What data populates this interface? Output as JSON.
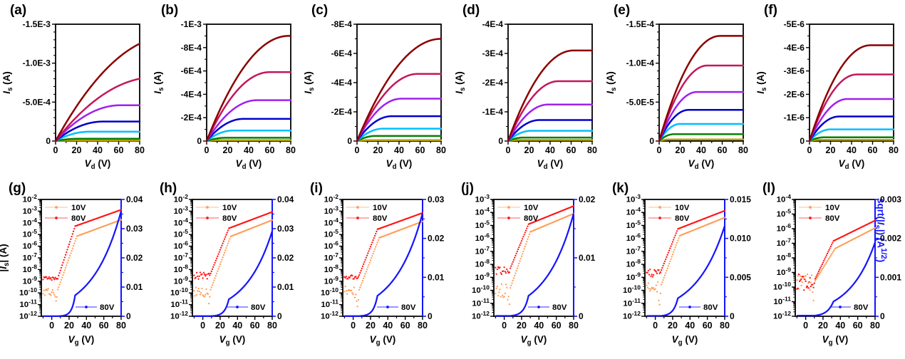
{
  "figure": {
    "background": "#ffffff",
    "right_axis_color": "#1414FF",
    "right_axis_label": "sqrt(|~I~_{s}|) (A^{1/2})"
  },
  "chart_data": [
    {
      "id": "a",
      "panel_label": "(a)",
      "type": "line",
      "kind": "output",
      "xlabel": "~V~_{d} (V)",
      "ylabel": "~I~_{s} (A)",
      "xlim": [
        0,
        80
      ],
      "x_major_ticks": [
        0,
        20,
        40,
        60,
        80
      ],
      "x_minor_ticks": [
        10,
        30,
        50,
        70
      ],
      "ylim": [
        0,
        -0.0015
      ],
      "y_minor_step": 0.0001,
      "y_tick_values": [
        0,
        -0.0005,
        -0.001,
        -0.0015
      ],
      "y_tick_labels": [
        "0",
        "-5.0E-4",
        "-1.0E-3",
        "-1.5E-3"
      ],
      "series": [
        {
          "name": "dark-red",
          "color": "#8B0000",
          "i_at_80V": -0.00125,
          "v_knee": 110
        },
        {
          "name": "crimson",
          "color": "#C2185B",
          "i_at_80V": -0.0008,
          "v_knee": 95
        },
        {
          "name": "violet",
          "color": "#A020F0",
          "i_at_80V": -0.00046,
          "v_knee": 62
        },
        {
          "name": "navy-blue",
          "color": "#0000CD",
          "i_at_80V": -0.00025,
          "v_knee": 45
        },
        {
          "name": "cyan",
          "color": "#00BFFF",
          "i_at_80V": -0.00012,
          "v_knee": 32
        },
        {
          "name": "green",
          "color": "#068006",
          "i_at_80V": -3e-05,
          "v_knee": 22
        },
        {
          "name": "dark-yellow",
          "color": "#B8A400",
          "i_at_80V": -8e-06,
          "v_knee": 15
        }
      ]
    },
    {
      "id": "b",
      "panel_label": "(b)",
      "type": "line",
      "kind": "output",
      "xlabel": "~V~_{d} (V)",
      "ylabel": "~I~_{s} (A)",
      "xlim": [
        0,
        80
      ],
      "x_major_ticks": [
        0,
        20,
        40,
        60,
        80
      ],
      "x_minor_ticks": [
        10,
        30,
        50,
        70
      ],
      "ylim": [
        0,
        -0.001
      ],
      "y_minor_step": 0.0001,
      "y_tick_values": [
        0,
        -0.0002,
        -0.0004,
        -0.0006,
        -0.0008,
        -0.001
      ],
      "y_tick_labels": [
        "0",
        "-2E-4",
        "-4E-4",
        "-6E-4",
        "-8E-4",
        "-1E-3"
      ],
      "series": [
        {
          "name": "dark-red",
          "color": "#8B0000",
          "i_at_80V": -0.0009,
          "v_knee": 78
        },
        {
          "name": "crimson",
          "color": "#C2185B",
          "i_at_80V": -0.00059,
          "v_knee": 60
        },
        {
          "name": "violet",
          "color": "#A020F0",
          "i_at_80V": -0.00035,
          "v_knee": 48
        },
        {
          "name": "navy-blue",
          "color": "#0000CD",
          "i_at_80V": -0.00019,
          "v_knee": 35
        },
        {
          "name": "cyan",
          "color": "#00BFFF",
          "i_at_80V": -9e-05,
          "v_knee": 25
        },
        {
          "name": "green",
          "color": "#068006",
          "i_at_80V": -2.8e-05,
          "v_knee": 18
        },
        {
          "name": "dark-yellow",
          "color": "#B8A400",
          "i_at_80V": -8e-06,
          "v_knee": 12
        }
      ]
    },
    {
      "id": "c",
      "panel_label": "(c)",
      "type": "line",
      "kind": "output",
      "xlabel": "~V~_{d} (V)",
      "ylabel": "~I~_{s} (A)",
      "xlim": [
        0,
        80
      ],
      "x_major_ticks": [
        0,
        20,
        40,
        60,
        80
      ],
      "x_minor_ticks": [
        10,
        30,
        50,
        70
      ],
      "ylim": [
        0,
        -0.0008
      ],
      "y_minor_step": 0.0001,
      "y_tick_values": [
        0,
        -0.0002,
        -0.0004,
        -0.0006,
        -0.0008
      ],
      "y_tick_labels": [
        "0",
        "-2E-4",
        "-4E-4",
        "-6E-4",
        "-8E-4"
      ],
      "series": [
        {
          "name": "dark-red",
          "color": "#8B0000",
          "i_at_80V": -0.0007,
          "v_knee": 80
        },
        {
          "name": "crimson",
          "color": "#C2185B",
          "i_at_80V": -0.00046,
          "v_knee": 58
        },
        {
          "name": "violet",
          "color": "#A020F0",
          "i_at_80V": -0.00029,
          "v_knee": 42
        },
        {
          "name": "navy-blue",
          "color": "#0000CD",
          "i_at_80V": -0.00017,
          "v_knee": 33
        },
        {
          "name": "cyan",
          "color": "#00BFFF",
          "i_at_80V": -8.5e-05,
          "v_knee": 25
        },
        {
          "name": "green",
          "color": "#068006",
          "i_at_80V": -3.5e-05,
          "v_knee": 18
        },
        {
          "name": "dark-yellow",
          "color": "#B8A400",
          "i_at_80V": -6e-06,
          "v_knee": 12
        }
      ]
    },
    {
      "id": "d",
      "panel_label": "(d)",
      "type": "line",
      "kind": "output",
      "xlabel": "~V~_{d} (V)",
      "ylabel": "~I~_{s} (A)",
      "xlim": [
        0,
        80
      ],
      "x_major_ticks": [
        0,
        20,
        40,
        60,
        80
      ],
      "x_minor_ticks": [
        10,
        30,
        50,
        70
      ],
      "ylim": [
        0,
        -0.0004
      ],
      "y_minor_step": 5e-05,
      "y_tick_values": [
        0,
        -0.0001,
        -0.0002,
        -0.0003,
        -0.0004
      ],
      "y_tick_labels": [
        "0",
        "-1E-4",
        "-2E-4",
        "-3E-4",
        "-4E-4"
      ],
      "series": [
        {
          "name": "dark-red",
          "color": "#8B0000",
          "i_at_80V": -0.00031,
          "v_knee": 62
        },
        {
          "name": "crimson",
          "color": "#C2185B",
          "i_at_80V": -0.000205,
          "v_knee": 48
        },
        {
          "name": "violet",
          "color": "#A020F0",
          "i_at_80V": -0.000125,
          "v_knee": 38
        },
        {
          "name": "navy-blue",
          "color": "#0000CD",
          "i_at_80V": -7.2e-05,
          "v_knee": 30
        },
        {
          "name": "cyan",
          "color": "#00BFFF",
          "i_at_80V": -3.5e-05,
          "v_knee": 22
        },
        {
          "name": "green",
          "color": "#068006",
          "i_at_80V": -1.2e-05,
          "v_knee": 15
        },
        {
          "name": "dark-yellow",
          "color": "#B8A400",
          "i_at_80V": -3.5e-06,
          "v_knee": 10
        }
      ]
    },
    {
      "id": "e",
      "panel_label": "(e)",
      "type": "line",
      "kind": "output",
      "xlabel": "~V~_{d} (V)",
      "ylabel": "~I~_{s} (A)",
      "xlim": [
        0,
        80
      ],
      "x_major_ticks": [
        0,
        20,
        40,
        60,
        80
      ],
      "x_minor_ticks": [
        10,
        30,
        50,
        70
      ],
      "ylim": [
        0,
        -0.00015
      ],
      "y_minor_step": 1e-05,
      "y_tick_values": [
        0,
        -5e-05,
        -0.0001,
        -0.00015
      ],
      "y_tick_labels": [
        "0",
        "-5.0E-5",
        "-1.0E-4",
        "-1.5E-4"
      ],
      "series": [
        {
          "name": "dark-red",
          "color": "#8B0000",
          "i_at_80V": -0.000135,
          "v_knee": 58
        },
        {
          "name": "crimson",
          "color": "#C2185B",
          "i_at_80V": -9.7e-05,
          "v_knee": 46
        },
        {
          "name": "violet",
          "color": "#A020F0",
          "i_at_80V": -6.3e-05,
          "v_knee": 36
        },
        {
          "name": "navy-blue",
          "color": "#0000CD",
          "i_at_80V": -4e-05,
          "v_knee": 28
        },
        {
          "name": "cyan",
          "color": "#00BFFF",
          "i_at_80V": -2.2e-05,
          "v_knee": 20
        },
        {
          "name": "green",
          "color": "#068006",
          "i_at_80V": -8.8e-06,
          "v_knee": 14
        },
        {
          "name": "dark-yellow",
          "color": "#B8A400",
          "i_at_80V": -2e-06,
          "v_knee": 10
        }
      ]
    },
    {
      "id": "f",
      "panel_label": "(f)",
      "type": "line",
      "kind": "output",
      "xlabel": "~V~_{d} (V)",
      "ylabel": "~I~_{s} (A)",
      "xlim": [
        0,
        80
      ],
      "x_major_ticks": [
        0,
        20,
        40,
        60,
        80
      ],
      "x_minor_ticks": [
        10,
        30,
        50,
        70
      ],
      "ylim": [
        0,
        -5e-06
      ],
      "y_minor_step": 5e-07,
      "y_tick_values": [
        0,
        -1e-06,
        -2e-06,
        -3e-06,
        -4e-06,
        -5e-06
      ],
      "y_tick_labels": [
        "0",
        "-1E-6",
        "-2E-6",
        "-3E-6",
        "-4E-6",
        "-5E-6"
      ],
      "series": [
        {
          "name": "dark-red",
          "color": "#8B0000",
          "i_at_80V": -4.1e-06,
          "v_knee": 58
        },
        {
          "name": "crimson",
          "color": "#C2185B",
          "i_at_80V": -2.85e-06,
          "v_knee": 45
        },
        {
          "name": "violet",
          "color": "#A020F0",
          "i_at_80V": -1.8e-06,
          "v_knee": 36
        },
        {
          "name": "navy-blue",
          "color": "#0000CD",
          "i_at_80V": -1.05e-06,
          "v_knee": 28
        },
        {
          "name": "cyan",
          "color": "#00BFFF",
          "i_at_80V": -5e-07,
          "v_knee": 20
        },
        {
          "name": "green",
          "color": "#068006",
          "i_at_80V": -1.6e-07,
          "v_knee": 14
        },
        {
          "name": "dark-yellow",
          "color": "#B8A400",
          "i_at_80V": -5e-08,
          "v_knee": 10
        }
      ]
    },
    {
      "id": "g",
      "panel_label": "(g)",
      "type": "scatter",
      "kind": "transfer",
      "xlabel": "~V~_{g} (V)",
      "ylabel_left": "|~I~_{s}| (A)",
      "xlim": [
        -12,
        80
      ],
      "x_major_ticks": [
        0,
        20,
        40,
        60,
        80
      ],
      "x_minor_ticks": [
        -10,
        10,
        30,
        50,
        70
      ],
      "left_log_range": [
        -12,
        -2
      ],
      "right_axis": {
        "max": 0.04,
        "major_ticks": [
          0,
          0.01,
          0.02,
          0.03,
          0.04
        ],
        "labels": [
          "0",
          "0.01",
          "0.02",
          "0.03",
          "0.04"
        ]
      },
      "legend_top": [
        {
          "label": "10V",
          "color": "#FF9E57"
        },
        {
          "label": "80V",
          "color": "#FF1414"
        }
      ],
      "legend_bottom": {
        "label": "80V",
        "color": "#1414FF"
      },
      "series": {
        "vd10": {
          "name": "10V",
          "color": "#FF9E57",
          "i_off": 1.2e-10,
          "v_on": 6,
          "v_knee": 29,
          "i_on_80V": 0.00018,
          "noise": 0.35,
          "pre_on_dip": true
        },
        "vd80": {
          "name": "80V",
          "color": "#FF1414",
          "i_off": 1.8e-09,
          "v_on": 7,
          "v_knee": 27,
          "i_on_80V": 0.0013,
          "noise": 0.12,
          "pre_on_dip": false
        },
        "sqrt80": {
          "name": "80V",
          "color": "#1414FF",
          "sqrt_at_80V": 0.036
        }
      }
    },
    {
      "id": "h",
      "panel_label": "(h)",
      "type": "scatter",
      "kind": "transfer",
      "xlabel": "~V~_{g} (V)",
      "xlim": [
        -12,
        80
      ],
      "x_major_ticks": [
        0,
        20,
        40,
        60,
        80
      ],
      "x_minor_ticks": [
        -10,
        10,
        30,
        50,
        70
      ],
      "left_log_range": [
        -12,
        -2
      ],
      "right_axis": {
        "max": 0.04,
        "major_ticks": [
          0,
          0.01,
          0.02,
          0.03,
          0.04
        ],
        "labels": [
          "0",
          "0.01",
          "0.02",
          "0.03",
          "0.04"
        ]
      },
      "legend_top": [
        {
          "label": "10V",
          "color": "#FF9E57"
        },
        {
          "label": "80V",
          "color": "#FF1414"
        }
      ],
      "legend_bottom": {
        "label": "80V",
        "color": "#1414FF"
      },
      "series": {
        "vd10": {
          "name": "10V",
          "color": "#FF9E57",
          "i_off": 1.2e-10,
          "v_on": 8,
          "v_knee": 32,
          "i_on_80V": 0.00017,
          "noise": 0.4,
          "pre_on_dip": true
        },
        "vd80": {
          "name": "80V",
          "color": "#FF1414",
          "i_off": 3e-09,
          "v_on": 8,
          "v_knee": 30,
          "i_on_80V": 0.00085,
          "noise": 0.3,
          "pre_on_dip": false
        },
        "sqrt80": {
          "name": "80V",
          "color": "#1414FF",
          "sqrt_at_80V": 0.0292
        }
      }
    },
    {
      "id": "i",
      "panel_label": "(i)",
      "type": "scatter",
      "kind": "transfer",
      "xlabel": "~V~_{g} (V)",
      "xlim": [
        -12,
        80
      ],
      "x_major_ticks": [
        0,
        20,
        40,
        60,
        80
      ],
      "x_minor_ticks": [
        -10,
        10,
        30,
        50,
        70
      ],
      "left_log_range": [
        -12,
        -2
      ],
      "right_axis": {
        "max": 0.03,
        "major_ticks": [
          0,
          0.01,
          0.02,
          0.03
        ],
        "labels": [
          "0",
          "0.01",
          "0.02",
          "0.03"
        ]
      },
      "legend_top": [
        {
          "label": "10V",
          "color": "#FF9E57"
        },
        {
          "label": "80V",
          "color": "#FF1414"
        }
      ],
      "legend_bottom": {
        "label": "80V",
        "color": "#1414FF"
      },
      "series": {
        "vd10": {
          "name": "10V",
          "color": "#FF9E57",
          "i_off": 1.2e-10,
          "v_on": 6,
          "v_knee": 30,
          "i_on_80V": 0.00013,
          "noise": 0.5,
          "pre_on_dip": true
        },
        "vd80": {
          "name": "80V",
          "color": "#FF1414",
          "i_off": 2.2e-09,
          "v_on": 6,
          "v_knee": 28,
          "i_on_80V": 0.0007,
          "noise": 0.2,
          "pre_on_dip": false
        },
        "sqrt80": {
          "name": "80V",
          "color": "#1414FF",
          "sqrt_at_80V": 0.0265
        }
      }
    },
    {
      "id": "j",
      "panel_label": "(j)",
      "type": "scatter",
      "kind": "transfer",
      "xlabel": "~V~_{g} (V)",
      "xlim": [
        -12,
        80
      ],
      "x_major_ticks": [
        0,
        20,
        40,
        60,
        80
      ],
      "x_minor_ticks": [
        -10,
        10,
        30,
        50,
        70
      ],
      "left_log_range": [
        -12,
        -3
      ],
      "right_axis": {
        "max": 0.02,
        "major_ticks": [
          0,
          0.01,
          0.02
        ],
        "labels": [
          "0",
          "0.01",
          "0.02"
        ]
      },
      "legend_top": [
        {
          "label": "10V",
          "color": "#FF9E57"
        },
        {
          "label": "80V",
          "color": "#FF1414"
        }
      ],
      "legend_bottom": {
        "label": "80V",
        "color": "#1414FF"
      },
      "series": {
        "vd10": {
          "name": "10V",
          "color": "#FF9E57",
          "i_off": 1e-10,
          "v_on": 6,
          "v_knee": 30,
          "i_on_80V": 8e-05,
          "noise": 0.5,
          "pre_on_dip": true
        },
        "vd80": {
          "name": "80V",
          "color": "#FF1414",
          "i_off": 3.5e-09,
          "v_on": 6,
          "v_knee": 28,
          "i_on_80V": 0.00031,
          "noise": 0.3,
          "pre_on_dip": false
        },
        "sqrt80": {
          "name": "80V",
          "color": "#1414FF",
          "sqrt_at_80V": 0.0176
        }
      }
    },
    {
      "id": "k",
      "panel_label": "(k)",
      "type": "scatter",
      "kind": "transfer",
      "xlabel": "~V~_{g} (V)",
      "xlim": [
        -12,
        80
      ],
      "x_major_ticks": [
        0,
        20,
        40,
        60,
        80
      ],
      "x_minor_ticks": [
        -10,
        10,
        30,
        50,
        70
      ],
      "left_log_range": [
        -12,
        -3
      ],
      "right_axis": {
        "max": 0.015,
        "major_ticks": [
          0,
          0.005,
          0.01,
          0.015
        ],
        "labels": [
          "0",
          "0.005",
          "0.010",
          "0.015"
        ]
      },
      "legend_top": [
        {
          "label": "10V",
          "color": "#FF9E57"
        },
        {
          "label": "80V",
          "color": "#FF1414"
        }
      ],
      "legend_bottom": {
        "label": "80V",
        "color": "#1414FF"
      },
      "series": {
        "vd10": {
          "name": "10V",
          "color": "#FF9E57",
          "i_off": 1.8e-10,
          "v_on": 6,
          "v_knee": 28,
          "i_on_80V": 4e-05,
          "noise": 0.4,
          "pre_on_dip": true
        },
        "vd80": {
          "name": "80V",
          "color": "#FF1414",
          "i_off": 2.5e-09,
          "v_on": 6,
          "v_knee": 26,
          "i_on_80V": 0.000135,
          "noise": 0.25,
          "pre_on_dip": false
        },
        "sqrt80": {
          "name": "80V",
          "color": "#1414FF",
          "sqrt_at_80V": 0.0116
        }
      }
    },
    {
      "id": "l",
      "panel_label": "(l)",
      "type": "scatter",
      "kind": "transfer",
      "xlabel": "~V~_{g} (V)",
      "xlim": [
        -12,
        80
      ],
      "x_major_ticks": [
        0,
        20,
        40,
        60,
        80
      ],
      "x_minor_ticks": [
        -10,
        10,
        30,
        50,
        70
      ],
      "left_log_range": [
        -12,
        -4
      ],
      "right_axis": {
        "max": 0.003,
        "major_ticks": [
          0,
          0.001,
          0.002,
          0.003
        ],
        "labels": [
          "0",
          "0.001",
          "0.002",
          "0.003"
        ]
      },
      "legend_top": [
        {
          "label": "10V",
          "color": "#FF9E57"
        },
        {
          "label": "80V",
          "color": "#FF1414"
        }
      ],
      "legend_bottom": {
        "label": "80V",
        "color": "#1414FF"
      },
      "series": {
        "vd10": {
          "name": "10V",
          "color": "#FF9E57",
          "i_off": 2.2e-10,
          "v_on": 10,
          "v_knee": 34,
          "i_on_80V": 1.1e-06,
          "noise": 0.55,
          "pre_on_dip": true
        },
        "vd80": {
          "name": "80V",
          "color": "#FF1414",
          "i_off": 2.8e-10,
          "v_on": 10,
          "v_knee": 32,
          "i_on_80V": 3.6e-06,
          "noise": 0.55,
          "pre_on_dip": true
        },
        "sqrt80": {
          "name": "80V",
          "color": "#1414FF",
          "sqrt_at_80V": 0.0019
        }
      }
    }
  ]
}
